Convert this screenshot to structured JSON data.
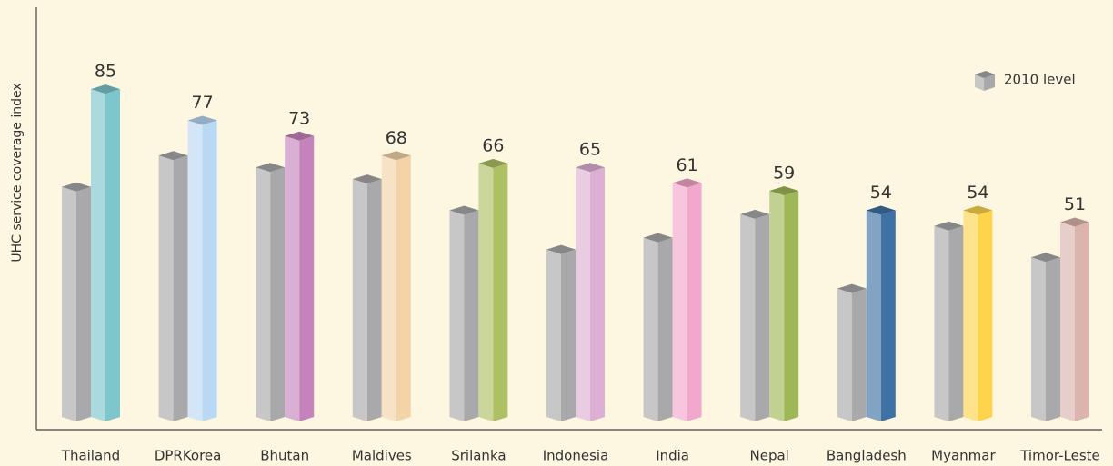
{
  "chart_data": {
    "type": "bar3d",
    "y_label": "UHC service coverage index",
    "categories": [
      "Thailand",
      "DPRKorea",
      "Bhutan",
      "Maldives",
      "Srilanka",
      "Indonesia",
      "India",
      "Nepal",
      "Bangladesh",
      "Myanmar",
      "Timor-Leste"
    ],
    "series": [
      {
        "name": "2010 level",
        "color": "#a9a9ab",
        "values": [
          60,
          68,
          65,
          62,
          54,
          44,
          47,
          53,
          34,
          50,
          42
        ]
      },
      {
        "colors": [
          "#7cc6cc",
          "#b9d8f3",
          "#c484bb",
          "#f3d3a8",
          "#aec064",
          "#ddb0d3",
          "#f2a8cc",
          "#9eb858",
          "#3f72a4",
          "#fdd44c",
          "#dcb4ae"
        ],
        "values": [
          85,
          77,
          73,
          68,
          66,
          65,
          61,
          59,
          54,
          54,
          51
        ]
      }
    ],
    "ylim": [
      0,
      105
    ],
    "legend": "upper right"
  }
}
